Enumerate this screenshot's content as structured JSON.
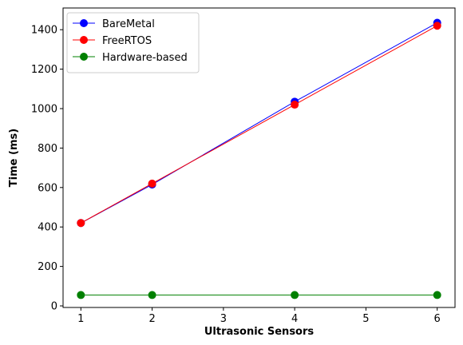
{
  "chart_data": {
    "type": "line",
    "x": [
      1,
      2,
      4,
      6
    ],
    "xlabel": "Ultrasonic Sensors",
    "ylabel": "Time (ms)",
    "xlim": [
      0.75,
      6.25
    ],
    "ylim": [
      -8,
      1510
    ],
    "xticks": [
      1,
      2,
      3,
      4,
      5,
      6
    ],
    "yticks": [
      0,
      200,
      400,
      600,
      800,
      1000,
      1200,
      1400
    ],
    "grid": false,
    "legend_position": "top-left",
    "series": [
      {
        "name": "BareMetal",
        "color": "#0000ff",
        "values": [
          420,
          615,
          1035,
          1435
        ]
      },
      {
        "name": "FreeRTOS",
        "color": "#ff0000",
        "values": [
          420,
          620,
          1020,
          1420
        ]
      },
      {
        "name": "Hardware-based",
        "color": "#008000",
        "values": [
          55,
          55,
          55,
          55
        ]
      }
    ]
  }
}
